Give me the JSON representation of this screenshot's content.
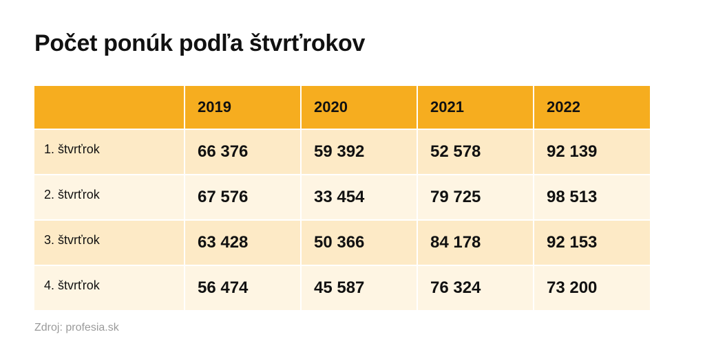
{
  "header": {
    "title": "Počet ponúk podľa štvrťrokov"
  },
  "table": {
    "columns": [
      "2019",
      "2020",
      "2021",
      "2022"
    ],
    "rows": [
      [
        "1. štvrťrok",
        "66 376",
        "59 392",
        "52 578",
        "92 139"
      ],
      [
        "2. štvrťrok",
        "67 576",
        "33 454",
        "79 725",
        "98 513"
      ],
      [
        "3. štvrťrok",
        "63 428",
        "50 366",
        "84 178",
        "92 153"
      ],
      [
        "4. štvrťrok",
        "56 474",
        "45 587",
        "76 324",
        "73 200"
      ]
    ]
  },
  "footer": {
    "source": "Zdroj: profesia.sk"
  }
}
